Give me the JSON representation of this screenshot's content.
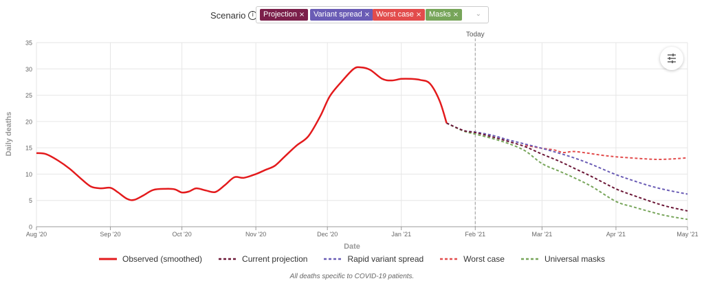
{
  "scenario": {
    "label": "Scenario",
    "info_icon": "info-icon",
    "tags": [
      {
        "label": "Projection",
        "color": "#7b1f4a"
      },
      {
        "label": "Variant spread",
        "color": "#6a5cb5"
      },
      {
        "label": "Worst case",
        "color": "#e24c4c"
      },
      {
        "label": "Masks",
        "color": "#77a55a"
      }
    ],
    "remove_glyph": "×",
    "dropdown_icon": "chevron-down-icon"
  },
  "controls": {
    "filter_icon": "sliders-icon"
  },
  "chart_data": {
    "type": "line",
    "xlabel": "Date",
    "ylabel": "Daily deaths",
    "ylim": [
      0,
      35
    ],
    "yticks": [
      0,
      5,
      10,
      15,
      20,
      25,
      30,
      35
    ],
    "xlim": [
      "2020-08-01",
      "2021-05-01"
    ],
    "xticks": [
      {
        "date": "2020-08-01",
        "label": "Aug '20"
      },
      {
        "date": "2020-09-01",
        "label": "Sep '20"
      },
      {
        "date": "2020-10-01",
        "label": "Oct '20"
      },
      {
        "date": "2020-11-01",
        "label": "Nov '20"
      },
      {
        "date": "2020-12-01",
        "label": "Dec '20"
      },
      {
        "date": "2021-01-01",
        "label": "Jan '21"
      },
      {
        "date": "2021-02-01",
        "label": "Feb '21"
      },
      {
        "date": "2021-03-01",
        "label": "Mar '21"
      },
      {
        "date": "2021-04-01",
        "label": "Apr '21"
      },
      {
        "date": "2021-05-01",
        "label": "May '21"
      }
    ],
    "today": {
      "date": "2021-02-01",
      "label": "Today"
    },
    "grid": true,
    "series": [
      {
        "name": "Observed (smoothed)",
        "color": "#e31a1c",
        "dash": "solid",
        "points": [
          [
            "2020-08-01",
            14.0
          ],
          [
            "2020-08-05",
            13.8
          ],
          [
            "2020-08-10",
            12.6
          ],
          [
            "2020-08-15",
            11.0
          ],
          [
            "2020-08-20",
            9.0
          ],
          [
            "2020-08-24",
            7.6
          ],
          [
            "2020-08-28",
            7.3
          ],
          [
            "2020-09-01",
            7.4
          ],
          [
            "2020-09-04",
            6.6
          ],
          [
            "2020-09-08",
            5.3
          ],
          [
            "2020-09-11",
            5.1
          ],
          [
            "2020-09-15",
            6.0
          ],
          [
            "2020-09-19",
            7.0
          ],
          [
            "2020-09-24",
            7.2
          ],
          [
            "2020-09-28",
            7.1
          ],
          [
            "2020-10-01",
            6.5
          ],
          [
            "2020-10-04",
            6.7
          ],
          [
            "2020-10-07",
            7.3
          ],
          [
            "2020-10-11",
            6.9
          ],
          [
            "2020-10-15",
            6.6
          ],
          [
            "2020-10-19",
            7.9
          ],
          [
            "2020-10-23",
            9.4
          ],
          [
            "2020-10-27",
            9.3
          ],
          [
            "2020-11-01",
            10.0
          ],
          [
            "2020-11-05",
            10.8
          ],
          [
            "2020-11-09",
            11.6
          ],
          [
            "2020-11-13",
            13.3
          ],
          [
            "2020-11-18",
            15.4
          ],
          [
            "2020-11-23",
            17.2
          ],
          [
            "2020-11-28",
            21.0
          ],
          [
            "2020-12-02",
            24.8
          ],
          [
            "2020-12-07",
            27.6
          ],
          [
            "2020-12-12",
            30.0
          ],
          [
            "2020-12-15",
            30.3
          ],
          [
            "2020-12-19",
            29.8
          ],
          [
            "2020-12-24",
            28.1
          ],
          [
            "2020-12-28",
            27.8
          ],
          [
            "2021-01-01",
            28.1
          ],
          [
            "2021-01-05",
            28.1
          ],
          [
            "2021-01-09",
            27.9
          ],
          [
            "2021-01-13",
            27.2
          ],
          [
            "2021-01-17",
            24.0
          ],
          [
            "2021-01-20",
            19.7
          ]
        ]
      },
      {
        "name": "Current projection",
        "color": "#6b1636",
        "dash": "dashed",
        "points": [
          [
            "2021-01-20",
            19.7
          ],
          [
            "2021-01-27",
            18.3
          ],
          [
            "2021-02-01",
            17.9
          ],
          [
            "2021-02-08",
            17.1
          ],
          [
            "2021-02-15",
            16.2
          ],
          [
            "2021-02-22",
            15.2
          ],
          [
            "2021-03-01",
            13.8
          ],
          [
            "2021-03-08",
            12.5
          ],
          [
            "2021-03-15",
            11.0
          ],
          [
            "2021-03-22",
            9.5
          ],
          [
            "2021-04-01",
            7.2
          ],
          [
            "2021-04-08",
            6.0
          ],
          [
            "2021-04-15",
            4.9
          ],
          [
            "2021-04-22",
            3.9
          ],
          [
            "2021-05-01",
            3.0
          ]
        ]
      },
      {
        "name": "Rapid variant spread",
        "color": "#6a5cb5",
        "dash": "dashed",
        "points": [
          [
            "2021-01-20",
            19.7
          ],
          [
            "2021-01-27",
            18.3
          ],
          [
            "2021-02-01",
            18.0
          ],
          [
            "2021-02-08",
            17.4
          ],
          [
            "2021-02-15",
            16.5
          ],
          [
            "2021-02-22",
            15.7
          ],
          [
            "2021-03-01",
            14.9
          ],
          [
            "2021-03-08",
            14.0
          ],
          [
            "2021-03-15",
            13.0
          ],
          [
            "2021-03-22",
            11.8
          ],
          [
            "2021-04-01",
            9.9
          ],
          [
            "2021-04-08",
            8.8
          ],
          [
            "2021-04-15",
            7.8
          ],
          [
            "2021-04-22",
            7.0
          ],
          [
            "2021-05-01",
            6.2
          ]
        ]
      },
      {
        "name": "Worst case",
        "color": "#e24c4c",
        "dash": "dashed",
        "points": [
          [
            "2021-02-22",
            15.5
          ],
          [
            "2021-03-01",
            14.9
          ],
          [
            "2021-03-06",
            14.6
          ],
          [
            "2021-03-10",
            14.1
          ],
          [
            "2021-03-14",
            14.3
          ],
          [
            "2021-03-20",
            14.0
          ],
          [
            "2021-03-26",
            13.6
          ],
          [
            "2021-04-01",
            13.3
          ],
          [
            "2021-04-10",
            13.0
          ],
          [
            "2021-04-18",
            12.8
          ],
          [
            "2021-04-25",
            12.9
          ],
          [
            "2021-05-01",
            13.1
          ]
        ]
      },
      {
        "name": "Universal masks",
        "color": "#77a55a",
        "dash": "dashed",
        "points": [
          [
            "2021-01-20",
            19.7
          ],
          [
            "2021-01-27",
            18.2
          ],
          [
            "2021-02-01",
            17.6
          ],
          [
            "2021-02-08",
            16.8
          ],
          [
            "2021-02-15",
            15.8
          ],
          [
            "2021-02-22",
            14.4
          ],
          [
            "2021-03-01",
            12.0
          ],
          [
            "2021-03-08",
            10.6
          ],
          [
            "2021-03-15",
            9.2
          ],
          [
            "2021-03-22",
            7.6
          ],
          [
            "2021-04-01",
            4.8
          ],
          [
            "2021-04-08",
            3.8
          ],
          [
            "2021-04-15",
            2.9
          ],
          [
            "2021-04-22",
            2.1
          ],
          [
            "2021-05-01",
            1.4
          ]
        ]
      }
    ]
  },
  "legend": [
    {
      "label": "Observed (smoothed)",
      "color": "#e31a1c",
      "dash": "solid"
    },
    {
      "label": "Current projection",
      "color": "#6b1636",
      "dash": "dashed"
    },
    {
      "label": "Rapid variant spread",
      "color": "#6a5cb5",
      "dash": "dashed"
    },
    {
      "label": "Worst case",
      "color": "#e24c4c",
      "dash": "dashed"
    },
    {
      "label": "Universal masks",
      "color": "#77a55a",
      "dash": "dashed"
    }
  ],
  "footnote": "All deaths specific to COVID-19 patients."
}
